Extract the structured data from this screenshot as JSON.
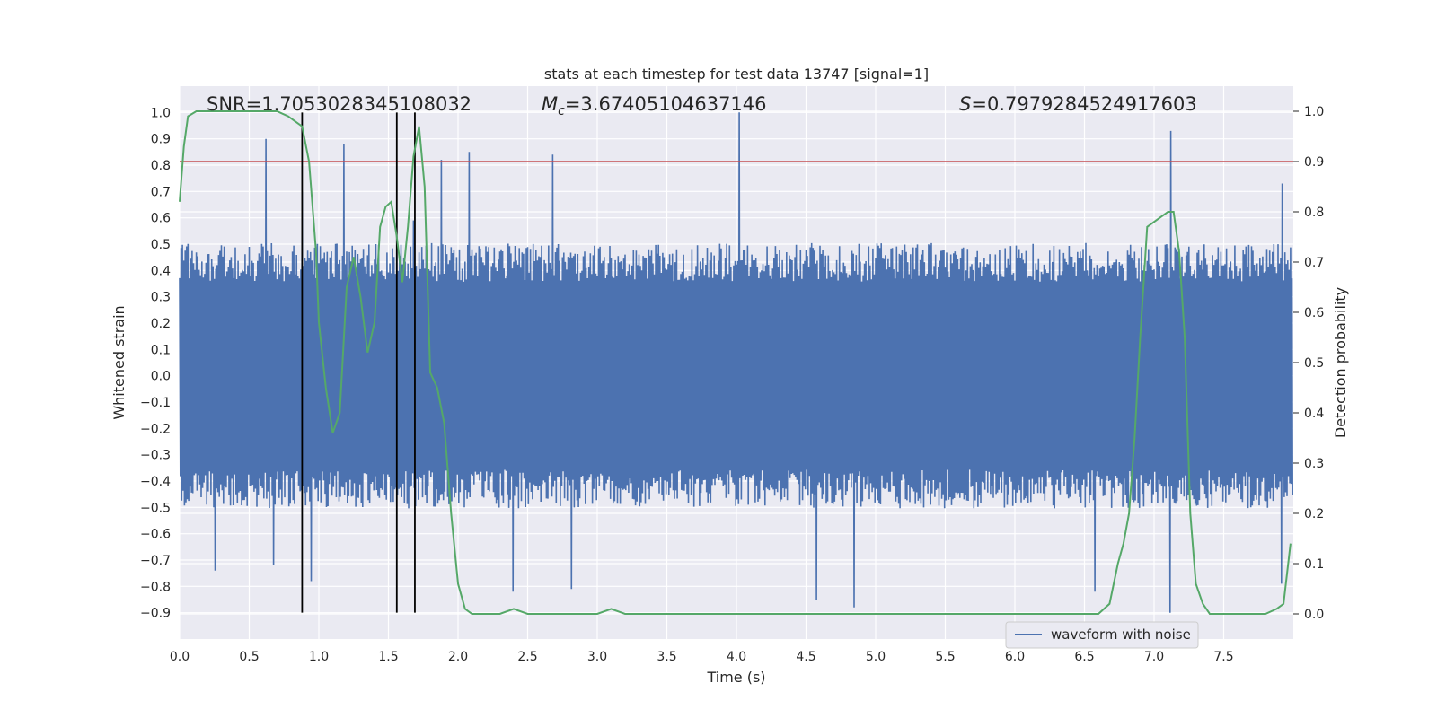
{
  "chart_data": {
    "type": "line",
    "title": "stats at each timestep for test data 13747 [signal=1]",
    "xlabel": "Time (s)",
    "ylabel": "Whitened strain",
    "ylabel_right": "Detection probability",
    "xlim": [
      0.0,
      8.0
    ],
    "ylim": [
      -1.0,
      1.1
    ],
    "ylim_right": [
      -0.05,
      1.05
    ],
    "x_ticks": [
      0.0,
      0.5,
      1.0,
      1.5,
      2.0,
      2.5,
      3.0,
      3.5,
      4.0,
      4.5,
      5.0,
      5.5,
      6.0,
      6.5,
      7.0,
      7.5
    ],
    "x_tick_labels": [
      "0.0",
      "0.5",
      "1.0",
      "1.5",
      "2.0",
      "2.5",
      "3.0",
      "3.5",
      "4.0",
      "4.5",
      "5.0",
      "5.5",
      "6.0",
      "6.5",
      "7.0",
      "7.5"
    ],
    "y_ticks": [
      -0.9,
      -0.8,
      -0.7,
      -0.6,
      -0.5,
      -0.4,
      -0.3,
      -0.2,
      -0.1,
      0.0,
      0.1,
      0.2,
      0.3,
      0.4,
      0.5,
      0.6,
      0.7,
      0.8,
      0.9,
      1.0
    ],
    "y_tick_labels": [
      "−0.9",
      "−0.8",
      "−0.7",
      "−0.6",
      "−0.5",
      "−0.4",
      "−0.3",
      "−0.2",
      "−0.1",
      "0.0",
      "0.1",
      "0.2",
      "0.3",
      "0.4",
      "0.5",
      "0.6",
      "0.7",
      "0.8",
      "0.9",
      "1.0"
    ],
    "y_right_ticks": [
      0.0,
      0.1,
      0.2,
      0.3,
      0.4,
      0.5,
      0.6,
      0.7,
      0.8,
      0.9,
      1.0
    ],
    "y_right_tick_labels": [
      "0.0",
      "0.1",
      "0.2",
      "0.3",
      "0.4",
      "0.5",
      "0.6",
      "0.7",
      "0.8",
      "0.9",
      "1.0"
    ],
    "grid": true,
    "annotations": {
      "snr": "SNR=1.7053028345108032",
      "mc_symbol": "M",
      "mc_subscript": "c",
      "mc_value": "=3.67405104637146",
      "s_symbol": "S",
      "s_value": "=0.7979284524917603"
    },
    "legend": {
      "placement": "lower-right",
      "entries": [
        "waveform with noise"
      ]
    },
    "threshold_right": 0.9,
    "vertical_markers_x": [
      0.88,
      1.56,
      1.69
    ],
    "vertical_markers_y_range": [
      -0.9,
      1.0
    ],
    "waveform": {
      "name": "waveform with noise",
      "duration": 8.0,
      "sample_count": 800,
      "envelope_typical": 0.42,
      "peaks": [
        {
          "x": 0.62,
          "y": 0.9
        },
        {
          "x": 0.88,
          "y": 0.7
        },
        {
          "x": 0.95,
          "y": -0.78
        },
        {
          "x": 1.18,
          "y": 0.88
        },
        {
          "x": 1.68,
          "y": 0.59
        },
        {
          "x": 1.88,
          "y": 0.82
        },
        {
          "x": 2.08,
          "y": 0.85
        },
        {
          "x": 2.4,
          "y": -0.82
        },
        {
          "x": 2.68,
          "y": 0.84
        },
        {
          "x": 2.82,
          "y": -0.81
        },
        {
          "x": 4.02,
          "y": 1.0
        },
        {
          "x": 4.58,
          "y": -0.85
        },
        {
          "x": 4.85,
          "y": -0.88
        },
        {
          "x": 6.58,
          "y": -0.82
        },
        {
          "x": 7.12,
          "y": -0.9
        },
        {
          "x": 7.12,
          "y": 0.93
        },
        {
          "x": 7.92,
          "y": 0.73
        },
        {
          "x": 7.92,
          "y": -0.79
        },
        {
          "x": 0.26,
          "y": -0.74
        },
        {
          "x": 0.68,
          "y": -0.72
        }
      ]
    },
    "detection_probability": {
      "color": "#55a868",
      "x": [
        0.0,
        0.03,
        0.06,
        0.12,
        0.2,
        0.3,
        0.4,
        0.5,
        0.6,
        0.7,
        0.78,
        0.83,
        0.88,
        0.93,
        0.98,
        1.0,
        1.05,
        1.1,
        1.15,
        1.2,
        1.25,
        1.3,
        1.35,
        1.4,
        1.44,
        1.48,
        1.52,
        1.56,
        1.6,
        1.64,
        1.68,
        1.72,
        1.76,
        1.8,
        1.85,
        1.9,
        1.95,
        2.0,
        2.05,
        2.1,
        2.2,
        2.3,
        2.4,
        2.5,
        2.6,
        2.7,
        2.8,
        2.9,
        3.0,
        3.1,
        3.2,
        3.3,
        3.4,
        3.5,
        3.6,
        3.7,
        3.8,
        3.9,
        4.0,
        4.2,
        4.4,
        4.6,
        4.8,
        5.0,
        5.2,
        5.4,
        5.6,
        5.8,
        6.0,
        6.2,
        6.4,
        6.5,
        6.6,
        6.68,
        6.74,
        6.78,
        6.82,
        6.86,
        6.9,
        6.95,
        7.0,
        7.05,
        7.1,
        7.14,
        7.18,
        7.22,
        7.26,
        7.3,
        7.35,
        7.4,
        7.5,
        7.6,
        7.7,
        7.8,
        7.88,
        7.93,
        7.98
      ],
      "y": [
        0.82,
        0.93,
        0.99,
        1.0,
        1.0,
        1.0,
        1.0,
        1.0,
        1.0,
        1.0,
        0.99,
        0.98,
        0.97,
        0.9,
        0.72,
        0.58,
        0.45,
        0.36,
        0.4,
        0.65,
        0.71,
        0.63,
        0.52,
        0.58,
        0.77,
        0.81,
        0.82,
        0.75,
        0.66,
        0.77,
        0.91,
        0.97,
        0.85,
        0.48,
        0.45,
        0.38,
        0.2,
        0.06,
        0.01,
        0.0,
        0.0,
        0.0,
        0.01,
        0.0,
        0.0,
        0.0,
        0.0,
        0.0,
        0.0,
        0.01,
        0.0,
        0.0,
        0.0,
        0.0,
        0.0,
        0.0,
        0.0,
        0.0,
        0.0,
        0.0,
        0.0,
        0.0,
        0.0,
        0.0,
        0.0,
        0.0,
        0.0,
        0.0,
        0.0,
        0.0,
        0.0,
        0.0,
        0.0,
        0.02,
        0.1,
        0.14,
        0.2,
        0.35,
        0.55,
        0.77,
        0.78,
        0.79,
        0.8,
        0.8,
        0.72,
        0.55,
        0.2,
        0.06,
        0.02,
        0.0,
        0.0,
        0.0,
        0.0,
        0.0,
        0.01,
        0.02,
        0.14
      ]
    },
    "colors": {
      "waveform": "#4c72b0",
      "probability": "#55a868",
      "threshold": "#c44e52",
      "markers": "#000000",
      "axes_bg": "#eaeaf2",
      "grid": "#ffffff"
    }
  }
}
